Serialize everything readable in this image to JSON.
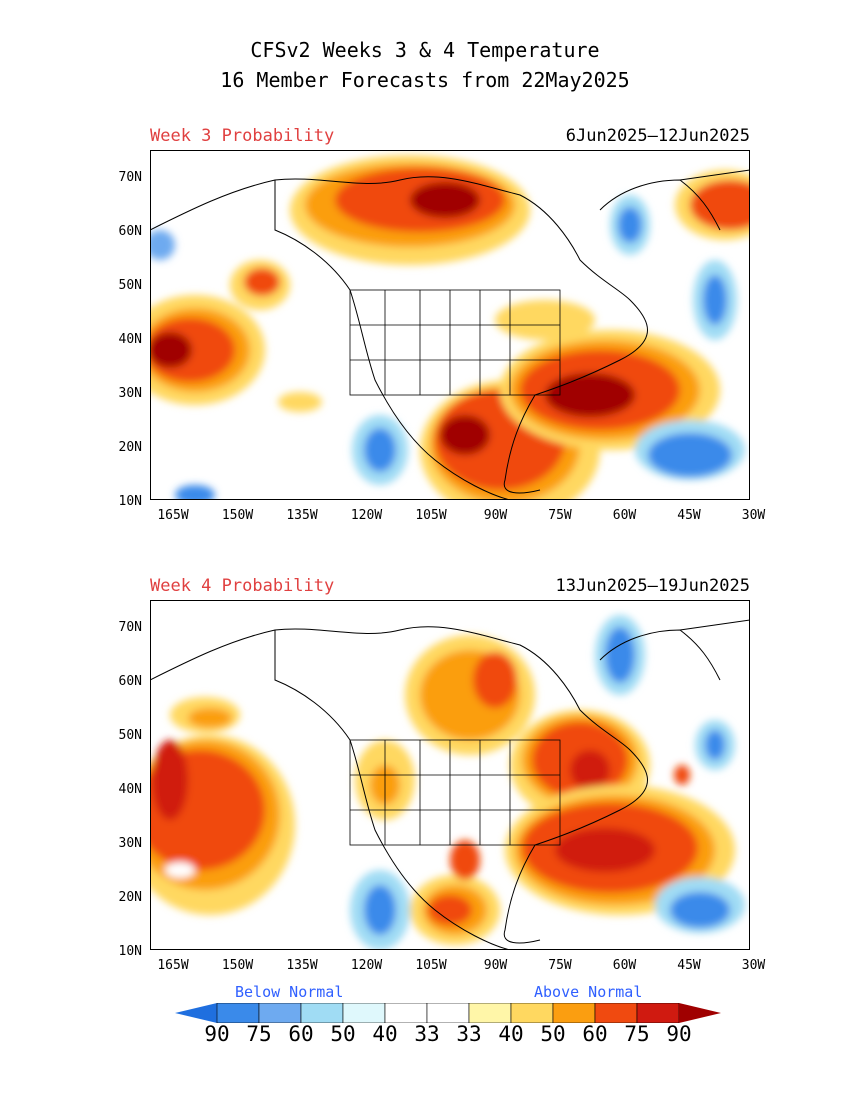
{
  "title": {
    "line1": "CFSv2 Weeks 3 & 4 Temperature",
    "line2": "16 Member Forecasts from 22May2025"
  },
  "panels": [
    {
      "label": "Week 3 Probability",
      "dates": "6Jun2025—12Jun2025"
    },
    {
      "label": "Week 4 Probability",
      "dates": "13Jun2025—19Jun2025"
    }
  ],
  "axes": {
    "lat_labels": [
      "70N",
      "60N",
      "50N",
      "40N",
      "30N",
      "20N",
      "10N"
    ],
    "lon_labels": [
      "165W",
      "150W",
      "135W",
      "120W",
      "105W",
      "90W",
      "75W",
      "60W",
      "45W",
      "30W"
    ]
  },
  "legend": {
    "below_label": "Below Normal",
    "above_label": "Above Normal",
    "values": [
      "90",
      "75",
      "60",
      "50",
      "40",
      "33",
      "33",
      "40",
      "50",
      "60",
      "75",
      "90"
    ],
    "colors": [
      "#1f6fdf",
      "#3a8aea",
      "#6eaaf0",
      "#a0dcf4",
      "#dff8fc",
      "#ffffff",
      "#ffffff",
      "#fff6a8",
      "#ffd860",
      "#fb9e10",
      "#f04a10",
      "#d01a10",
      "#a00000"
    ]
  }
}
